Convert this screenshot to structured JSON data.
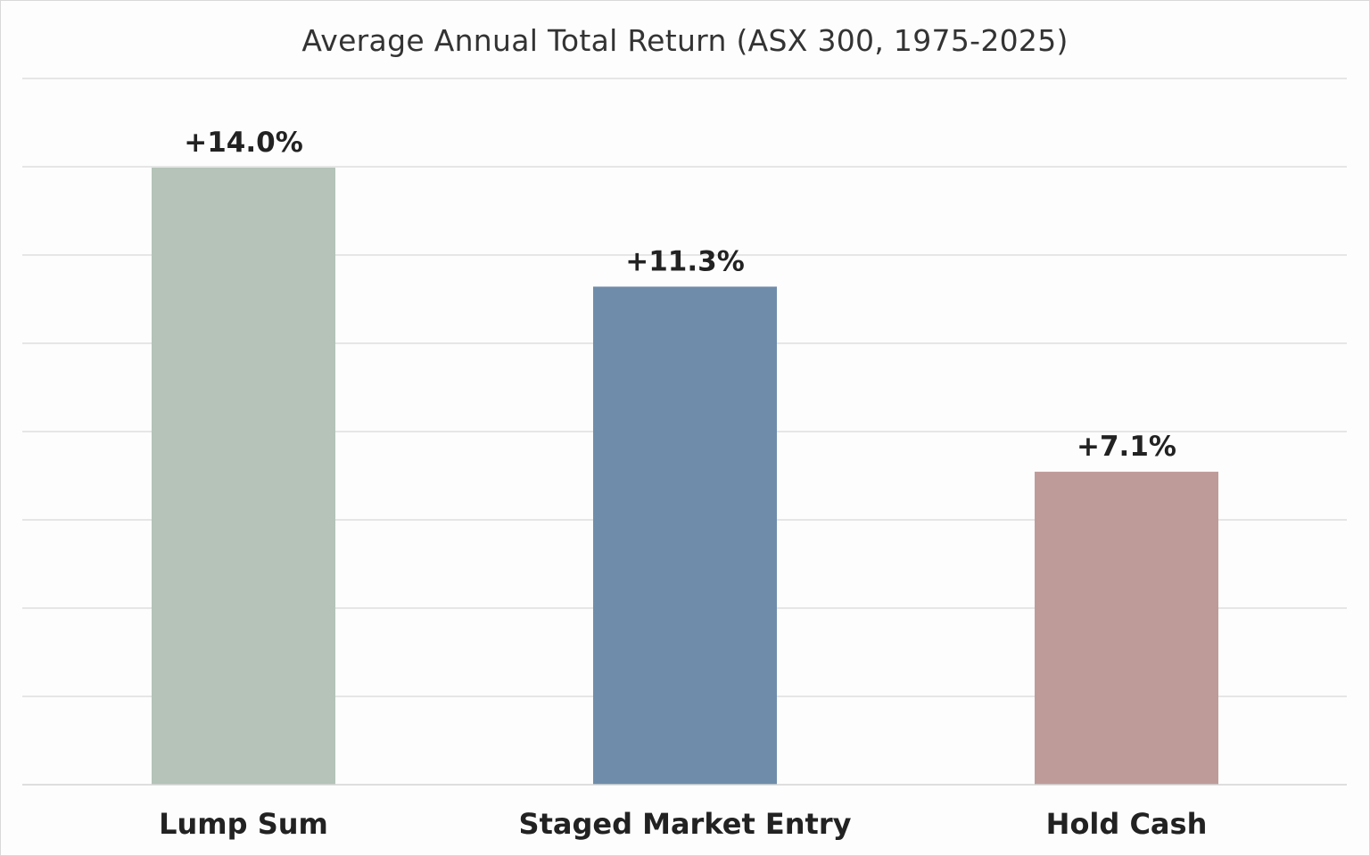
{
  "chart_data": {
    "type": "bar",
    "title": "Average Annual Total Return (ASX 300, 1975-2025)",
    "xlabel": "",
    "ylabel": "",
    "categories": [
      "Lump Sum",
      "Staged Market Entry",
      "Hold Cash"
    ],
    "values": [
      14.0,
      11.3,
      7.1
    ],
    "data_labels": [
      "+14.0%",
      "+11.3%",
      "+7.1%"
    ],
    "colors": [
      "#b5c3b8",
      "#6f8daa",
      "#be9b99"
    ],
    "ylim": [
      0,
      14
    ],
    "grid": true,
    "legend": "none"
  }
}
